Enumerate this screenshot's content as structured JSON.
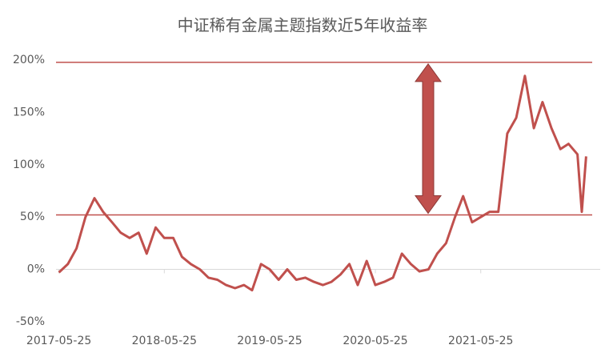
{
  "chart_data": {
    "type": "line",
    "title": "中证稀有金属主题指数近5年收益率",
    "x": [
      "2017-05-25",
      "2017-06-25",
      "2017-07-25",
      "2017-08-25",
      "2017-09-25",
      "2017-10-25",
      "2017-11-25",
      "2017-12-25",
      "2018-01-25",
      "2018-02-25",
      "2018-03-25",
      "2018-04-25",
      "2018-05-25",
      "2018-06-25",
      "2018-07-25",
      "2018-08-25",
      "2018-09-25",
      "2018-10-25",
      "2018-11-25",
      "2018-12-25",
      "2019-01-25",
      "2019-02-25",
      "2019-03-25",
      "2019-04-25",
      "2019-05-25",
      "2019-06-25",
      "2019-07-25",
      "2019-08-25",
      "2019-09-25",
      "2019-10-25",
      "2019-11-25",
      "2019-12-25",
      "2020-01-25",
      "2020-02-25",
      "2020-03-25",
      "2020-04-25",
      "2020-05-25",
      "2020-06-25",
      "2020-07-25",
      "2020-08-25",
      "2020-09-25",
      "2020-10-25",
      "2020-11-25",
      "2020-12-25",
      "2021-01-25",
      "2021-02-25",
      "2021-03-25",
      "2021-04-25",
      "2021-05-25",
      "2021-06-25",
      "2021-07-25",
      "2021-08-25",
      "2021-09-25",
      "2021-10-25",
      "2021-11-25",
      "2021-12-25",
      "2022-01-25",
      "2022-02-25",
      "2022-03-25",
      "2022-04-25",
      "2022-05-10",
      "2022-05-25"
    ],
    "series": [
      {
        "name": "收益率",
        "color": "#c0504d",
        "values": [
          -3,
          5,
          20,
          50,
          68,
          55,
          45,
          35,
          30,
          35,
          15,
          40,
          30,
          30,
          12,
          5,
          0,
          -8,
          -10,
          -15,
          -18,
          -15,
          -20,
          5,
          0,
          -10,
          0,
          -10,
          -8,
          -12,
          -15,
          -12,
          -5,
          5,
          -15,
          8,
          -15,
          -12,
          -8,
          15,
          5,
          -2,
          0,
          15,
          25,
          50,
          70,
          45,
          50,
          55,
          55,
          130,
          145,
          185,
          135,
          160,
          135,
          115,
          120,
          110,
          55,
          108
        ]
      }
    ],
    "xlim": [
      "2017-05-15",
      "2022-06-15"
    ],
    "xticks": [
      "2017-05-25",
      "2018-05-25",
      "2019-05-25",
      "2020-05-25",
      "2021-05-25"
    ],
    "ylim": [
      -55,
      205
    ],
    "yticks": [
      {
        "value": -50,
        "label": "-50%"
      },
      {
        "value": 0,
        "label": "0%"
      },
      {
        "value": 50,
        "label": "50%"
      },
      {
        "value": 100,
        "label": "100%"
      },
      {
        "value": 150,
        "label": "150%"
      },
      {
        "value": 200,
        "label": "200%"
      }
    ],
    "reference_lines": [
      198,
      52
    ]
  }
}
